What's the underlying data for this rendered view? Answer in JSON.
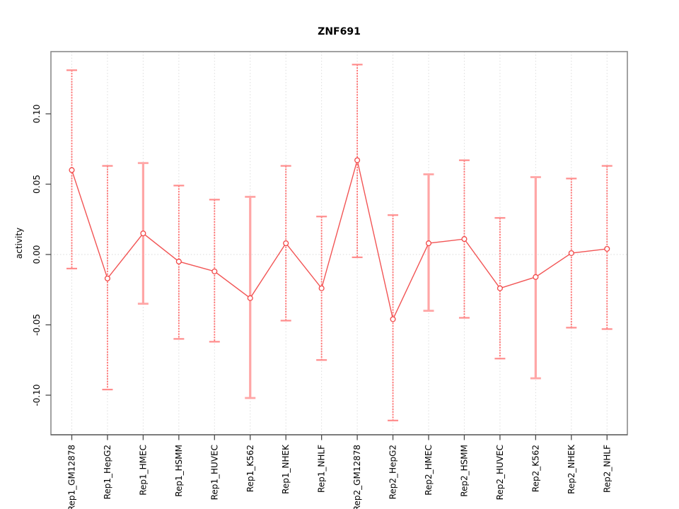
{
  "page": {
    "title": "ZNF691"
  },
  "chart_data": {
    "type": "line",
    "title": "ZNF691",
    "xlabel": "",
    "ylabel": "activity",
    "legend": "none",
    "marker": "open-circle",
    "grid": "vertical-dotted-at-each-category, dotted-line-at-zero",
    "categories": [
      "Rep1_GM12878",
      "Rep1_HepG2",
      "Rep1_HMEC",
      "Rep1_HSMM",
      "Rep1_HUVEC",
      "Rep1_K562",
      "Rep1_NHEK",
      "Rep1_NHLF",
      "Rep2_GM12878",
      "Rep2_HepG2",
      "Rep2_HMEC",
      "Rep2_HSMM",
      "Rep2_HUVEC",
      "Rep2_K562",
      "Rep2_NHEK",
      "Rep2_NHLF"
    ],
    "series": [
      {
        "name": "activity",
        "values": [
          0.06,
          -0.017,
          0.015,
          -0.005,
          -0.012,
          -0.031,
          0.008,
          -0.024,
          0.067,
          -0.046,
          0.008,
          0.011,
          -0.024,
          -0.016,
          0.001,
          0.004
        ],
        "ci_lower": [
          -0.01,
          -0.096,
          -0.035,
          -0.06,
          -0.062,
          -0.102,
          -0.047,
          -0.075,
          -0.002,
          -0.118,
          -0.04,
          -0.045,
          -0.074,
          -0.088,
          -0.052,
          -0.053
        ],
        "ci_upper": [
          0.131,
          0.063,
          0.065,
          0.049,
          0.039,
          0.041,
          0.063,
          0.027,
          0.135,
          0.028,
          0.057,
          0.067,
          0.026,
          0.055,
          0.054,
          0.063
        ],
        "thick_error_bar": [
          false,
          false,
          true,
          false,
          false,
          true,
          false,
          false,
          false,
          false,
          true,
          false,
          false,
          true,
          false,
          false
        ]
      }
    ],
    "y_ticks": [
      -0.1,
      -0.05,
      0.0,
      0.05,
      0.1
    ],
    "y_tick_labels": [
      "-0.10",
      "-0.05",
      "0.00",
      "0.05",
      "0.10"
    ],
    "ylim": [
      -0.128,
      0.144
    ],
    "colors": {
      "line": "#f25555",
      "point_stroke": "#f24848",
      "error_bar": "#ff7373",
      "error_bar_cap": "#ff8c8c",
      "error_bar_thick": "#ffa6a6",
      "zero_line": "#d9d9d9",
      "grid": "#dcdcdc",
      "box": "#8a8a8a",
      "axis": "#4a4a4a",
      "text": "#000000"
    }
  }
}
